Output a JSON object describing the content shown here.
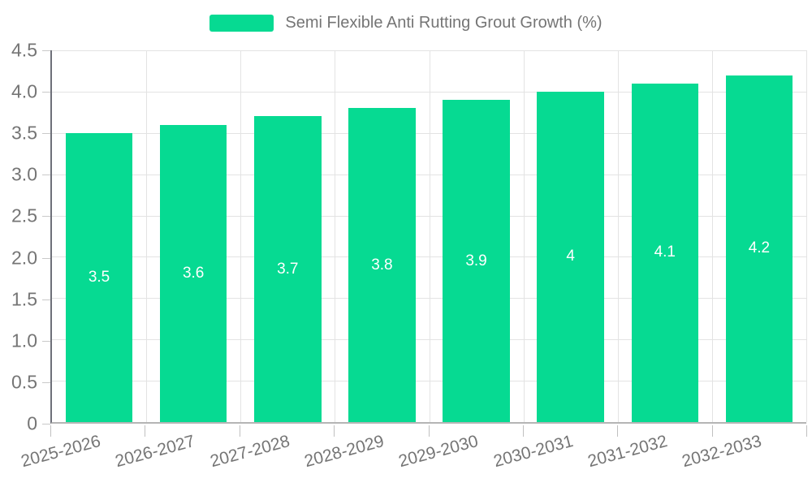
{
  "legend": {
    "label": "Semi Flexible Anti Rutting Grout Growth (%)"
  },
  "chart_data": {
    "type": "bar",
    "title": "Semi Flexible Anti Rutting Grout Growth (%)",
    "categories": [
      "2025-2026",
      "2026-2027",
      "2027-2028",
      "2028-2029",
      "2029-2030",
      "2030-2031",
      "2031-2032",
      "2032-2033"
    ],
    "values": [
      3.5,
      3.6,
      3.7,
      3.8,
      3.9,
      4,
      4.1,
      4.2
    ],
    "value_labels": [
      "3.5",
      "3.6",
      "3.7",
      "3.8",
      "3.9",
      "4",
      "4.1",
      "4.2"
    ],
    "xlabel": "",
    "ylabel": "",
    "ylim": [
      0,
      4.5
    ],
    "ytick_step": 0.5,
    "ytick_labels": [
      "0",
      "0.5",
      "1.0",
      "1.5",
      "2.0",
      "2.5",
      "3.0",
      "3.5",
      "4.0",
      "4.5"
    ],
    "grid": true,
    "legend_position": "top-center",
    "bar_color": "#06da92",
    "value_label_color": "#ffffff",
    "axis_text_color": "#757575",
    "gridline_color": "#e3e3e3",
    "x_label_rotation_deg": -15
  }
}
